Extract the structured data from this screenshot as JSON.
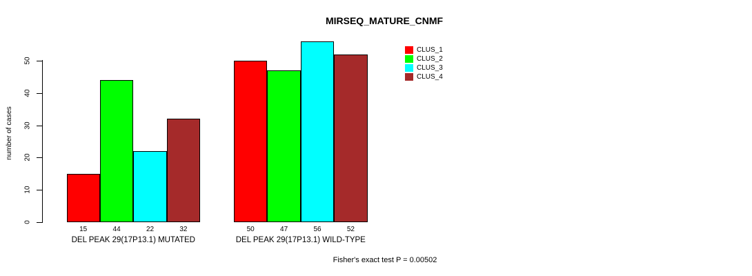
{
  "chart_data": {
    "type": "bar",
    "title": "MIRSEQ_MATURE_CNMF",
    "ylabel": "number of cases",
    "xlabel": "",
    "yticks": [
      0,
      10,
      20,
      30,
      40,
      50
    ],
    "ylim": [
      0,
      50
    ],
    "grid": false,
    "legend_position": "right",
    "show_value_labels": true,
    "categories": [
      "DEL PEAK 29(17P13.1) MUTATED",
      "DEL PEAK 29(17P13.1) WILD-TYPE"
    ],
    "series": [
      {
        "name": "CLUS_1",
        "color": "#ff0000",
        "values": [
          15,
          50
        ]
      },
      {
        "name": "CLUS_2",
        "color": "#00ff00",
        "values": [
          44,
          47
        ]
      },
      {
        "name": "CLUS_3",
        "color": "#00ffff",
        "values": [
          22,
          56
        ]
      },
      {
        "name": "CLUS_4",
        "color": "#a52a2a",
        "values": [
          32,
          52
        ]
      }
    ],
    "annotation": "Fisher's exact test P = 0.00502"
  }
}
